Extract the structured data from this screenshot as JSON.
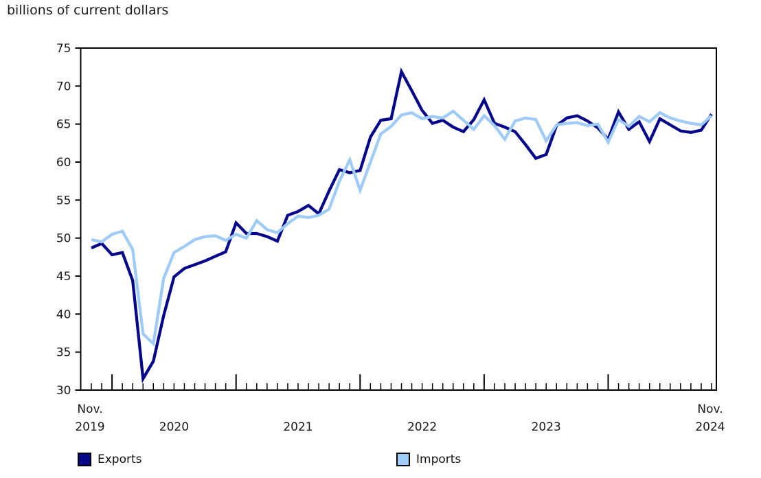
{
  "chart_data": {
    "type": "line",
    "title": "billions of current dollars",
    "frequency": "monthly",
    "x_range": "Nov. 2019 to Nov. 2024",
    "months_total": 61,
    "x_start_label": {
      "line1": "Nov.",
      "line2": "2019"
    },
    "x_end_label": {
      "line1": "Nov.",
      "line2": "2024"
    },
    "x_year_labels": [
      {
        "label": "2020",
        "month_index": 8
      },
      {
        "label": "2021",
        "month_index": 20
      },
      {
        "label": "2022",
        "month_index": 32
      },
      {
        "label": "2023",
        "month_index": 44
      }
    ],
    "x_major_tick_month_indices": [
      2,
      14,
      26,
      38,
      50
    ],
    "y_axis": {
      "min": 30,
      "max": 75,
      "step": 5,
      "tick_values": [
        75,
        70,
        65,
        60,
        55,
        50,
        45,
        40,
        35,
        30
      ]
    },
    "grid": false,
    "legend_position": "bottom",
    "series": [
      {
        "name": "Exports",
        "color": "#06068b",
        "values": [
          48.7,
          49.3,
          47.8,
          48.1,
          44.4,
          31.5,
          33.8,
          39.8,
          44.9,
          46.0,
          46.5,
          47.0,
          47.6,
          48.2,
          52.0,
          50.6,
          50.6,
          50.2,
          49.6,
          53.0,
          53.5,
          54.3,
          53.2,
          56.2,
          59.0,
          58.6,
          58.9,
          63.3,
          65.5,
          65.7,
          71.9,
          69.4,
          66.8,
          65.1,
          65.5,
          64.6,
          64.0,
          65.6,
          68.2,
          65.1,
          64.6,
          64.0,
          62.3,
          60.5,
          61.0,
          64.8,
          65.8,
          66.1,
          65.4,
          64.5,
          63.0,
          66.6,
          64.3,
          65.3,
          62.7,
          65.7,
          64.9,
          64.1,
          63.9,
          64.2,
          66.3
        ]
      },
      {
        "name": "Imports",
        "color": "#9fccf7",
        "values": [
          49.8,
          49.5,
          50.5,
          50.9,
          48.5,
          37.4,
          36.1,
          44.7,
          48.1,
          48.9,
          49.8,
          50.2,
          50.3,
          49.7,
          50.5,
          50.0,
          52.3,
          51.1,
          50.7,
          51.9,
          52.9,
          52.7,
          53.0,
          53.8,
          57.5,
          60.3,
          56.3,
          60.0,
          63.7,
          64.7,
          66.2,
          66.5,
          65.7,
          66.0,
          65.8,
          66.7,
          65.5,
          64.3,
          66.1,
          64.8,
          63.0,
          65.4,
          65.8,
          65.6,
          62.8,
          64.9,
          65.1,
          65.2,
          64.8,
          65.0,
          62.6,
          65.6,
          64.7,
          66.0,
          65.3,
          66.5,
          65.8,
          65.4,
          65.1,
          64.9,
          66.1
        ]
      }
    ],
    "legend": [
      {
        "label": "Exports",
        "color": "#06068b"
      },
      {
        "label": "Imports",
        "color": "#9fccf7"
      }
    ]
  }
}
